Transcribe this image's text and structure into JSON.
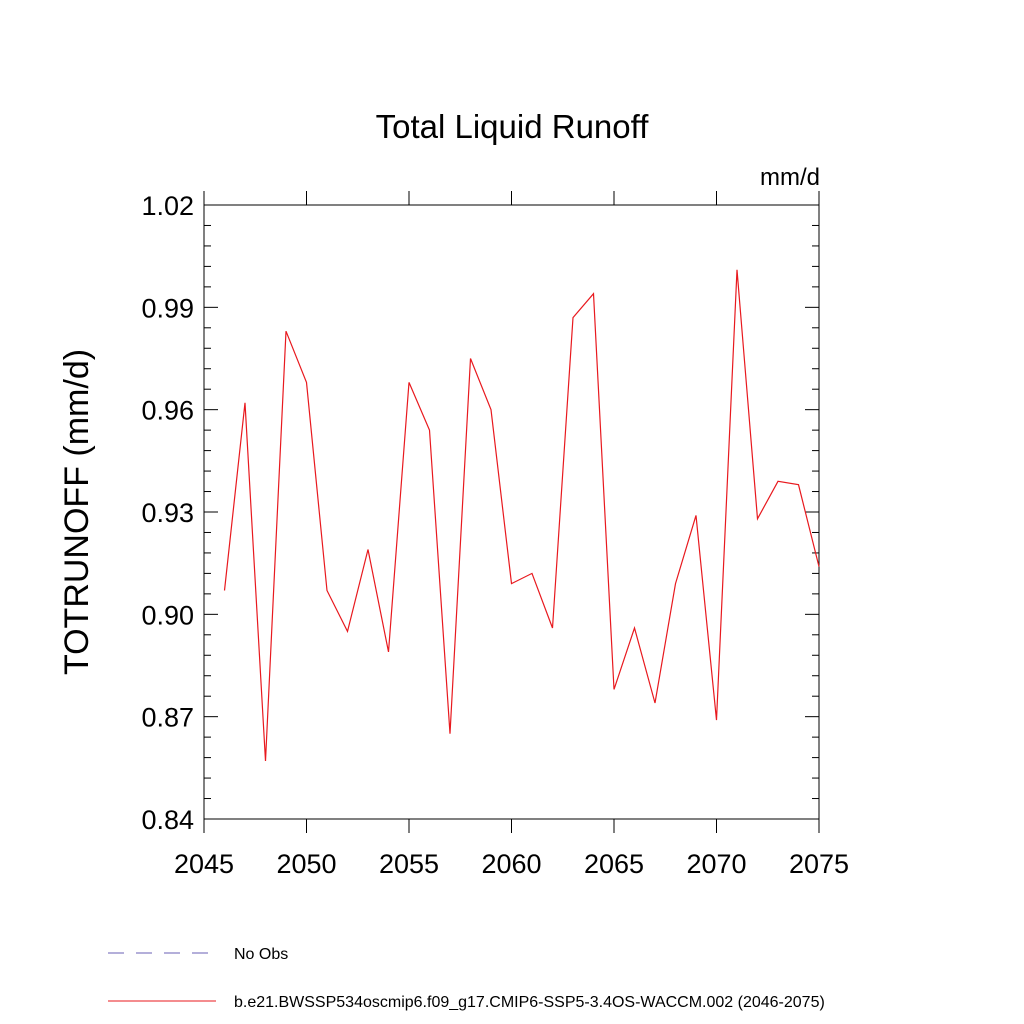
{
  "chart_data": {
    "type": "line",
    "title": "Total Liquid Runoff",
    "units_label": "mm/d",
    "ylabel": "TOTRUNOFF  (mm/d)",
    "xlabel": "",
    "xlim": [
      2045,
      2075
    ],
    "ylim": [
      0.84,
      1.02
    ],
    "x_ticks": [
      2045,
      2050,
      2055,
      2060,
      2065,
      2070,
      2075
    ],
    "x_tick_labels": [
      "2045",
      "2050",
      "2055",
      "2060",
      "2065",
      "2070",
      "2075"
    ],
    "y_ticks": [
      0.84,
      0.87,
      0.9,
      0.93,
      0.96,
      0.99,
      1.02
    ],
    "y_tick_labels": [
      "0.84",
      "0.87",
      "0.90",
      "0.93",
      "0.96",
      "0.99",
      "1.02"
    ],
    "grid": false,
    "legend_position": "bottom-left",
    "series": [
      {
        "name": "b.e21.BWSSP534oscmip6.f09_g17.CMIP6-SSP5-3.4OS-WACCM.002 (2046-2075)",
        "color": "#e8191e",
        "style": "solid",
        "x": [
          2046,
          2047,
          2048,
          2049,
          2050,
          2051,
          2052,
          2053,
          2054,
          2055,
          2056,
          2057,
          2058,
          2059,
          2060,
          2061,
          2062,
          2063,
          2064,
          2065,
          2066,
          2067,
          2068,
          2069,
          2070,
          2071,
          2072,
          2073,
          2074,
          2075
        ],
        "values": [
          0.907,
          0.962,
          0.857,
          0.983,
          0.968,
          0.907,
          0.895,
          0.919,
          0.889,
          0.968,
          0.954,
          0.865,
          0.975,
          0.96,
          0.909,
          0.912,
          0.896,
          0.987,
          0.994,
          0.878,
          0.896,
          0.874,
          0.909,
          0.929,
          0.869,
          1.001,
          0.928,
          0.939,
          0.938,
          0.914
        ]
      }
    ],
    "legend": [
      {
        "label": "No Obs",
        "color": "#6a5fb5",
        "style": "dashed"
      },
      {
        "label": "b.e21.BWSSP534oscmip6.f09_g17.CMIP6-SSP5-3.4OS-WACCM.002 (2046-2075)",
        "color": "#e8191e",
        "style": "solid"
      }
    ]
  }
}
